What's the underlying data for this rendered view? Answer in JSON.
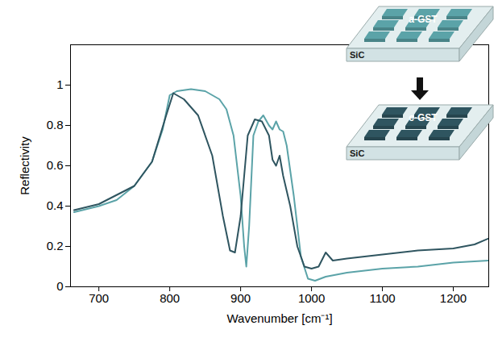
{
  "chart_data": {
    "type": "line",
    "x_label": "Wavenumber [cm⁻¹]",
    "y_label": "Reflectivity",
    "xlim": [
      660,
      1250
    ],
    "ylim": [
      0,
      1.2
    ],
    "xticks": [
      700,
      800,
      900,
      1000,
      1100,
      1200
    ],
    "yticks": [
      0,
      0.2,
      0.4,
      0.6,
      0.8,
      1
    ],
    "grid": false,
    "annotations": [
      "SiC"
    ],
    "series": [
      {
        "name": "a-GST",
        "color": "#5ba3a8",
        "x": [
          665,
          700,
          725,
          750,
          775,
          790,
          800,
          810,
          830,
          850,
          870,
          880,
          890,
          900,
          905,
          908,
          912,
          918,
          925,
          932,
          940,
          945,
          950,
          955,
          960,
          965,
          975,
          985,
          995,
          1005,
          1020,
          1050,
          1100,
          1150,
          1200,
          1250
        ],
        "values": [
          0.37,
          0.4,
          0.43,
          0.5,
          0.62,
          0.78,
          0.95,
          0.97,
          0.98,
          0.97,
          0.93,
          0.88,
          0.75,
          0.45,
          0.2,
          0.1,
          0.3,
          0.75,
          0.82,
          0.85,
          0.8,
          0.78,
          0.82,
          0.78,
          0.77,
          0.7,
          0.45,
          0.15,
          0.04,
          0.03,
          0.05,
          0.07,
          0.09,
          0.1,
          0.12,
          0.13
        ]
      },
      {
        "name": "c-GST",
        "color": "#2f5560",
        "x": [
          665,
          700,
          750,
          775,
          795,
          805,
          820,
          840,
          860,
          875,
          885,
          892,
          900,
          910,
          920,
          930,
          940,
          945,
          950,
          955,
          960,
          970,
          980,
          990,
          1000,
          1010,
          1020,
          1030,
          1050,
          1100,
          1150,
          1200,
          1230,
          1250
        ],
        "values": [
          0.38,
          0.41,
          0.5,
          0.62,
          0.85,
          0.96,
          0.93,
          0.85,
          0.65,
          0.35,
          0.18,
          0.17,
          0.35,
          0.75,
          0.83,
          0.82,
          0.75,
          0.63,
          0.6,
          0.65,
          0.55,
          0.4,
          0.2,
          0.1,
          0.09,
          0.1,
          0.17,
          0.13,
          0.14,
          0.16,
          0.18,
          0.19,
          0.21,
          0.24
        ]
      }
    ]
  }
}
